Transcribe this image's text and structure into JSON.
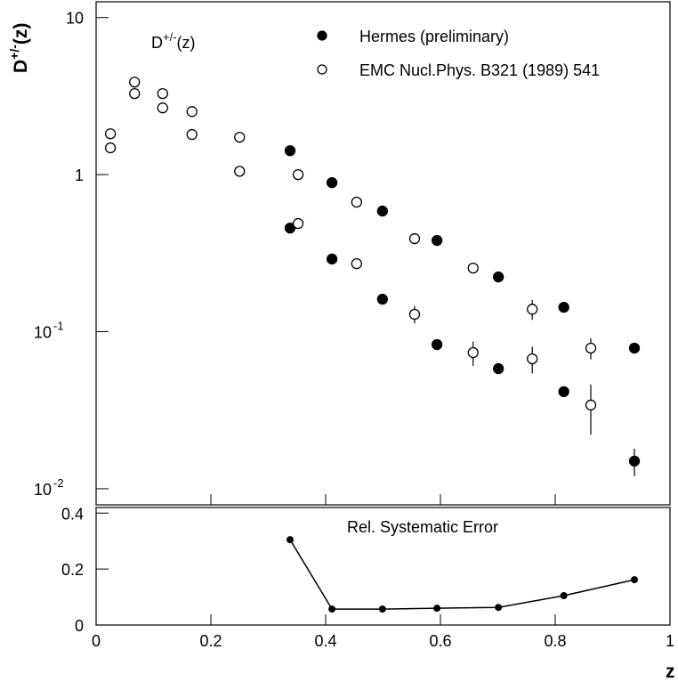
{
  "chart_data": [
    {
      "type": "scatter",
      "log_y": true,
      "title": {
        "base": "D",
        "sup": "+/-",
        "tail": "(z)"
      },
      "y_label": {
        "base": "D",
        "sup": "+/-",
        "tail": "(z)"
      },
      "xlim": [
        0,
        1
      ],
      "xticks": [
        0,
        0.2,
        0.4,
        0.6,
        0.8,
        1
      ],
      "show_xtick_labels": false,
      "ylim": [
        0.0079,
        12.6
      ],
      "yticks": [
        10,
        1,
        {
          "value": 0.1,
          "label": "10",
          "exponent": "-1"
        },
        {
          "value": 0.01,
          "label": "10",
          "exponent": "-2"
        }
      ],
      "series": [
        {
          "name": "Hermes (preliminary)",
          "color": "#000000",
          "marker": "filled",
          "x": [
            0.338,
            0.338,
            0.411,
            0.411,
            0.499,
            0.499,
            0.594,
            0.594,
            0.701,
            0.701,
            0.815,
            0.815,
            0.938,
            0.938
          ],
          "values": [
            1.42,
            0.457,
            0.889,
            0.29,
            0.586,
            0.161,
            0.381,
            0.0828,
            0.223,
            0.0582,
            0.143,
            0.0415,
            0.0786,
            0.015
          ],
          "errors": [
            null,
            null,
            null,
            null,
            null,
            null,
            null,
            null,
            null,
            null,
            null,
            0.003,
            null,
            0.003
          ]
        },
        {
          "name": "EMC Nucl.Phys. B321 (1989) 541",
          "color": "#000000",
          "marker": "open",
          "x": [
            0.025,
            0.025,
            0.067,
            0.067,
            0.116,
            0.116,
            0.167,
            0.167,
            0.25,
            0.25,
            0.352,
            0.352,
            0.454,
            0.454,
            0.555,
            0.555,
            0.657,
            0.657,
            0.76,
            0.76,
            0.862,
            0.862
          ],
          "values": [
            1.82,
            1.48,
            3.88,
            3.28,
            3.28,
            2.66,
            2.52,
            1.8,
            1.73,
            1.05,
            1.0,
            0.488,
            0.668,
            0.271,
            0.391,
            0.129,
            0.254,
            0.0736,
            0.139,
            0.0672,
            0.0786,
            0.0341
          ],
          "errors": [
            null,
            null,
            null,
            null,
            null,
            null,
            null,
            null,
            null,
            null,
            null,
            null,
            null,
            null,
            null,
            0.016,
            null,
            0.013,
            0.02,
            0.013,
            0.012,
            0.012
          ]
        }
      ]
    },
    {
      "type": "line",
      "title": "Rel. Systematic Error",
      "x_label": "z",
      "xlim": [
        0,
        1
      ],
      "xticks": [
        0,
        0.2,
        0.4,
        0.6,
        0.8,
        1
      ],
      "show_xtick_labels": true,
      "ylim": [
        0,
        0.42
      ],
      "yticks": [
        0,
        0.2,
        0.4
      ],
      "series": [
        {
          "color": "#000000",
          "x": [
            0.338,
            0.411,
            0.499,
            0.594,
            0.701,
            0.815,
            0.938
          ],
          "values": [
            0.305,
            0.057,
            0.057,
            0.06,
            0.063,
            0.105,
            0.162
          ]
        }
      ]
    }
  ]
}
